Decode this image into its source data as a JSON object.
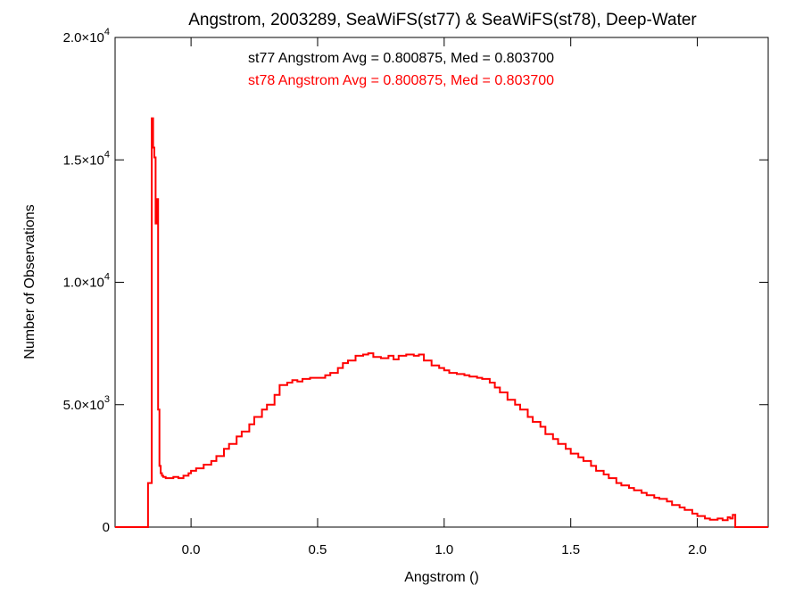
{
  "chart_data": {
    "type": "line",
    "step": true,
    "title": "Angstrom, 2003289, SeaWiFS(st77) & SeaWiFS(st78), Deep-Water",
    "xlabel": "Angstrom ()",
    "ylabel": "Number of Observations",
    "xlim": [
      -0.3,
      2.28
    ],
    "ylim": [
      0,
      20000
    ],
    "x_ticks": [
      {
        "value": 0.0,
        "label": "0.0"
      },
      {
        "value": 0.5,
        "label": "0.5"
      },
      {
        "value": 1.0,
        "label": "1.0"
      },
      {
        "value": 1.5,
        "label": "1.5"
      },
      {
        "value": 2.0,
        "label": "2.0"
      }
    ],
    "y_ticks": [
      {
        "value": 0,
        "mantissa": "0",
        "exp": ""
      },
      {
        "value": 5000,
        "mantissa": "5.0×10",
        "exp": "3"
      },
      {
        "value": 10000,
        "mantissa": "1.0×10",
        "exp": "4"
      },
      {
        "value": 15000,
        "mantissa": "1.5×10",
        "exp": "4"
      },
      {
        "value": 20000,
        "mantissa": "2.0×10",
        "exp": "4"
      }
    ],
    "annotations": [
      {
        "text": "st77 Angstrom Avg = 0.800875, Med = 0.803700",
        "color": "#000000"
      },
      {
        "text": "st78 Angstrom Avg = 0.800875, Med = 0.803700",
        "color": "#ff0000"
      }
    ],
    "series": [
      {
        "color": "#ff0000",
        "x": [
          -0.3,
          -0.17,
          -0.155,
          -0.15,
          -0.145,
          -0.14,
          -0.135,
          -0.13,
          -0.125,
          -0.12,
          -0.115,
          -0.11,
          -0.1,
          -0.09,
          -0.07,
          -0.05,
          -0.03,
          -0.01,
          0.0,
          0.02,
          0.05,
          0.08,
          0.1,
          0.13,
          0.15,
          0.18,
          0.2,
          0.23,
          0.25,
          0.28,
          0.3,
          0.33,
          0.35,
          0.38,
          0.4,
          0.42,
          0.44,
          0.47,
          0.5,
          0.53,
          0.55,
          0.58,
          0.6,
          0.62,
          0.65,
          0.68,
          0.7,
          0.72,
          0.75,
          0.78,
          0.8,
          0.82,
          0.85,
          0.88,
          0.9,
          0.92,
          0.95,
          0.98,
          1.0,
          1.02,
          1.05,
          1.08,
          1.1,
          1.13,
          1.15,
          1.18,
          1.2,
          1.22,
          1.25,
          1.28,
          1.3,
          1.33,
          1.35,
          1.38,
          1.4,
          1.43,
          1.45,
          1.48,
          1.5,
          1.53,
          1.55,
          1.58,
          1.6,
          1.63,
          1.65,
          1.68,
          1.7,
          1.73,
          1.75,
          1.78,
          1.8,
          1.83,
          1.85,
          1.88,
          1.9,
          1.93,
          1.95,
          1.98,
          2.0,
          2.03,
          2.05,
          2.08,
          2.1,
          2.12,
          2.13,
          2.14,
          2.15,
          2.28
        ],
        "values": [
          0,
          1800,
          16700,
          15500,
          15100,
          12400,
          13400,
          4800,
          2500,
          2200,
          2100,
          2050,
          2000,
          2000,
          2050,
          2000,
          2100,
          2200,
          2300,
          2400,
          2550,
          2700,
          2900,
          3200,
          3400,
          3700,
          3900,
          4200,
          4500,
          4800,
          5000,
          5400,
          5800,
          5900,
          6000,
          5950,
          6050,
          6100,
          6100,
          6200,
          6300,
          6500,
          6700,
          6800,
          7000,
          7050,
          7100,
          6950,
          6900,
          7000,
          6850,
          7000,
          7050,
          7000,
          7050,
          6800,
          6600,
          6500,
          6400,
          6300,
          6250,
          6200,
          6150,
          6100,
          6050,
          5900,
          5700,
          5500,
          5200,
          5000,
          4800,
          4500,
          4300,
          4100,
          3800,
          3600,
          3400,
          3200,
          3000,
          2850,
          2700,
          2500,
          2300,
          2150,
          2000,
          1800,
          1700,
          1600,
          1500,
          1400,
          1300,
          1200,
          1150,
          1050,
          900,
          800,
          700,
          550,
          450,
          350,
          300,
          350,
          280,
          400,
          350,
          500,
          0,
          0
        ]
      }
    ]
  }
}
